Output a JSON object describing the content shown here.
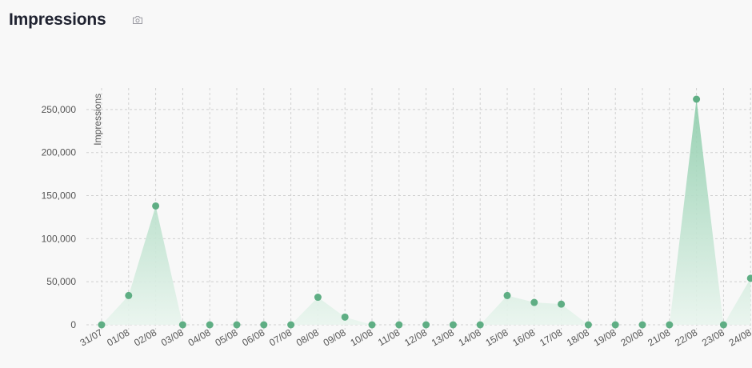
{
  "header": {
    "title": "Impressions",
    "camera_icon": "camera-icon"
  },
  "colors": {
    "accent": "#5fae84",
    "fill_top": "#8cccaa",
    "fill_bottom": "#e9f5ee",
    "grid": "#cfcfcf",
    "text": "#1f2230"
  },
  "chart_data": {
    "type": "area",
    "title": "Impressions",
    "xlabel": "",
    "ylabel": "Impressions",
    "categories": [
      "31/07",
      "01/08",
      "02/08",
      "03/08",
      "04/08",
      "05/08",
      "06/08",
      "07/08",
      "08/08",
      "09/08",
      "10/08",
      "11/08",
      "12/08",
      "13/08",
      "14/08",
      "15/08",
      "16/08",
      "17/08",
      "18/08",
      "19/08",
      "20/08",
      "21/08",
      "22/08",
      "23/08",
      "24/08"
    ],
    "values": [
      0,
      34000,
      138000,
      0,
      0,
      0,
      0,
      0,
      32000,
      9000,
      0,
      0,
      0,
      0,
      0,
      34000,
      26000,
      24000,
      0,
      0,
      0,
      0,
      262000,
      0,
      54000
    ],
    "yticks": [
      0,
      50000,
      100000,
      150000,
      200000,
      250000
    ],
    "ytick_labels": [
      "0",
      "50,000",
      "100,000",
      "150,000",
      "200,000",
      "250,000"
    ],
    "ylim": [
      0,
      270000
    ],
    "grid": true,
    "legend": "none"
  }
}
